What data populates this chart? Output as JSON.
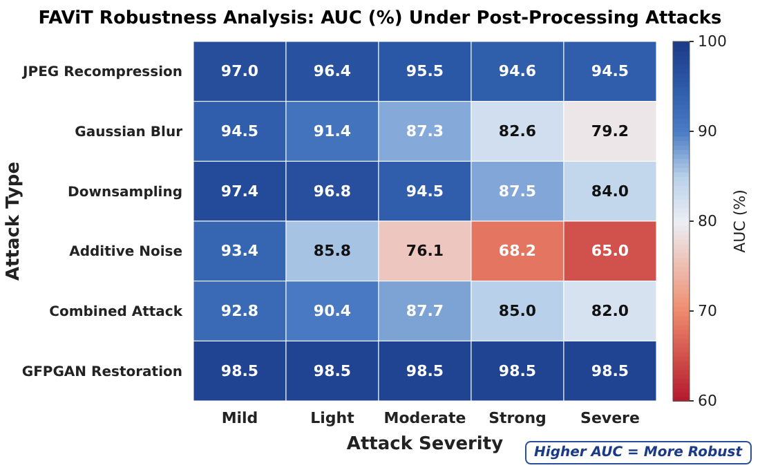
{
  "chart_data": {
    "type": "heatmap",
    "title": "FAViT Robustness Analysis: AUC (%) Under Post-Processing Attacks",
    "xlabel": "Attack Severity",
    "ylabel": "Attack Type",
    "clabel": "AUC (%)",
    "categories": [
      "Mild",
      "Light",
      "Moderate",
      "Strong",
      "Severe"
    ],
    "y_categories": [
      "JPEG Recompression",
      "Gaussian Blur",
      "Downsampling",
      "Additive Noise",
      "Combined Attack",
      "GFPGAN Restoration"
    ],
    "cells": [
      [
        97.0,
        96.4,
        95.5,
        94.6,
        94.5
      ],
      [
        94.5,
        91.4,
        87.3,
        82.6,
        79.2
      ],
      [
        97.4,
        96.8,
        94.5,
        87.5,
        84.0
      ],
      [
        93.4,
        85.8,
        76.1,
        68.2,
        65.0
      ],
      [
        92.8,
        90.4,
        87.7,
        85.0,
        82.0
      ],
      [
        98.5,
        98.5,
        98.5,
        98.5,
        98.5
      ]
    ],
    "cell_labels": [
      [
        "97.0",
        "96.4",
        "95.5",
        "94.6",
        "94.5"
      ],
      [
        "94.5",
        "91.4",
        "87.3",
        "82.6",
        "79.2"
      ],
      [
        "97.4",
        "96.8",
        "94.5",
        "87.5",
        "84.0"
      ],
      [
        "93.4",
        "85.8",
        "76.1",
        "68.2",
        "65.0"
      ],
      [
        "92.8",
        "90.4",
        "87.7",
        "85.0",
        "82.0"
      ],
      [
        "98.5",
        "98.5",
        "98.5",
        "98.5",
        "98.5"
      ]
    ],
    "clim": [
      60,
      100
    ],
    "cticks": [
      60,
      70,
      80,
      90,
      100
    ],
    "data_labels": true,
    "annotations": [
      "Higher AUC = More Robust"
    ]
  }
}
